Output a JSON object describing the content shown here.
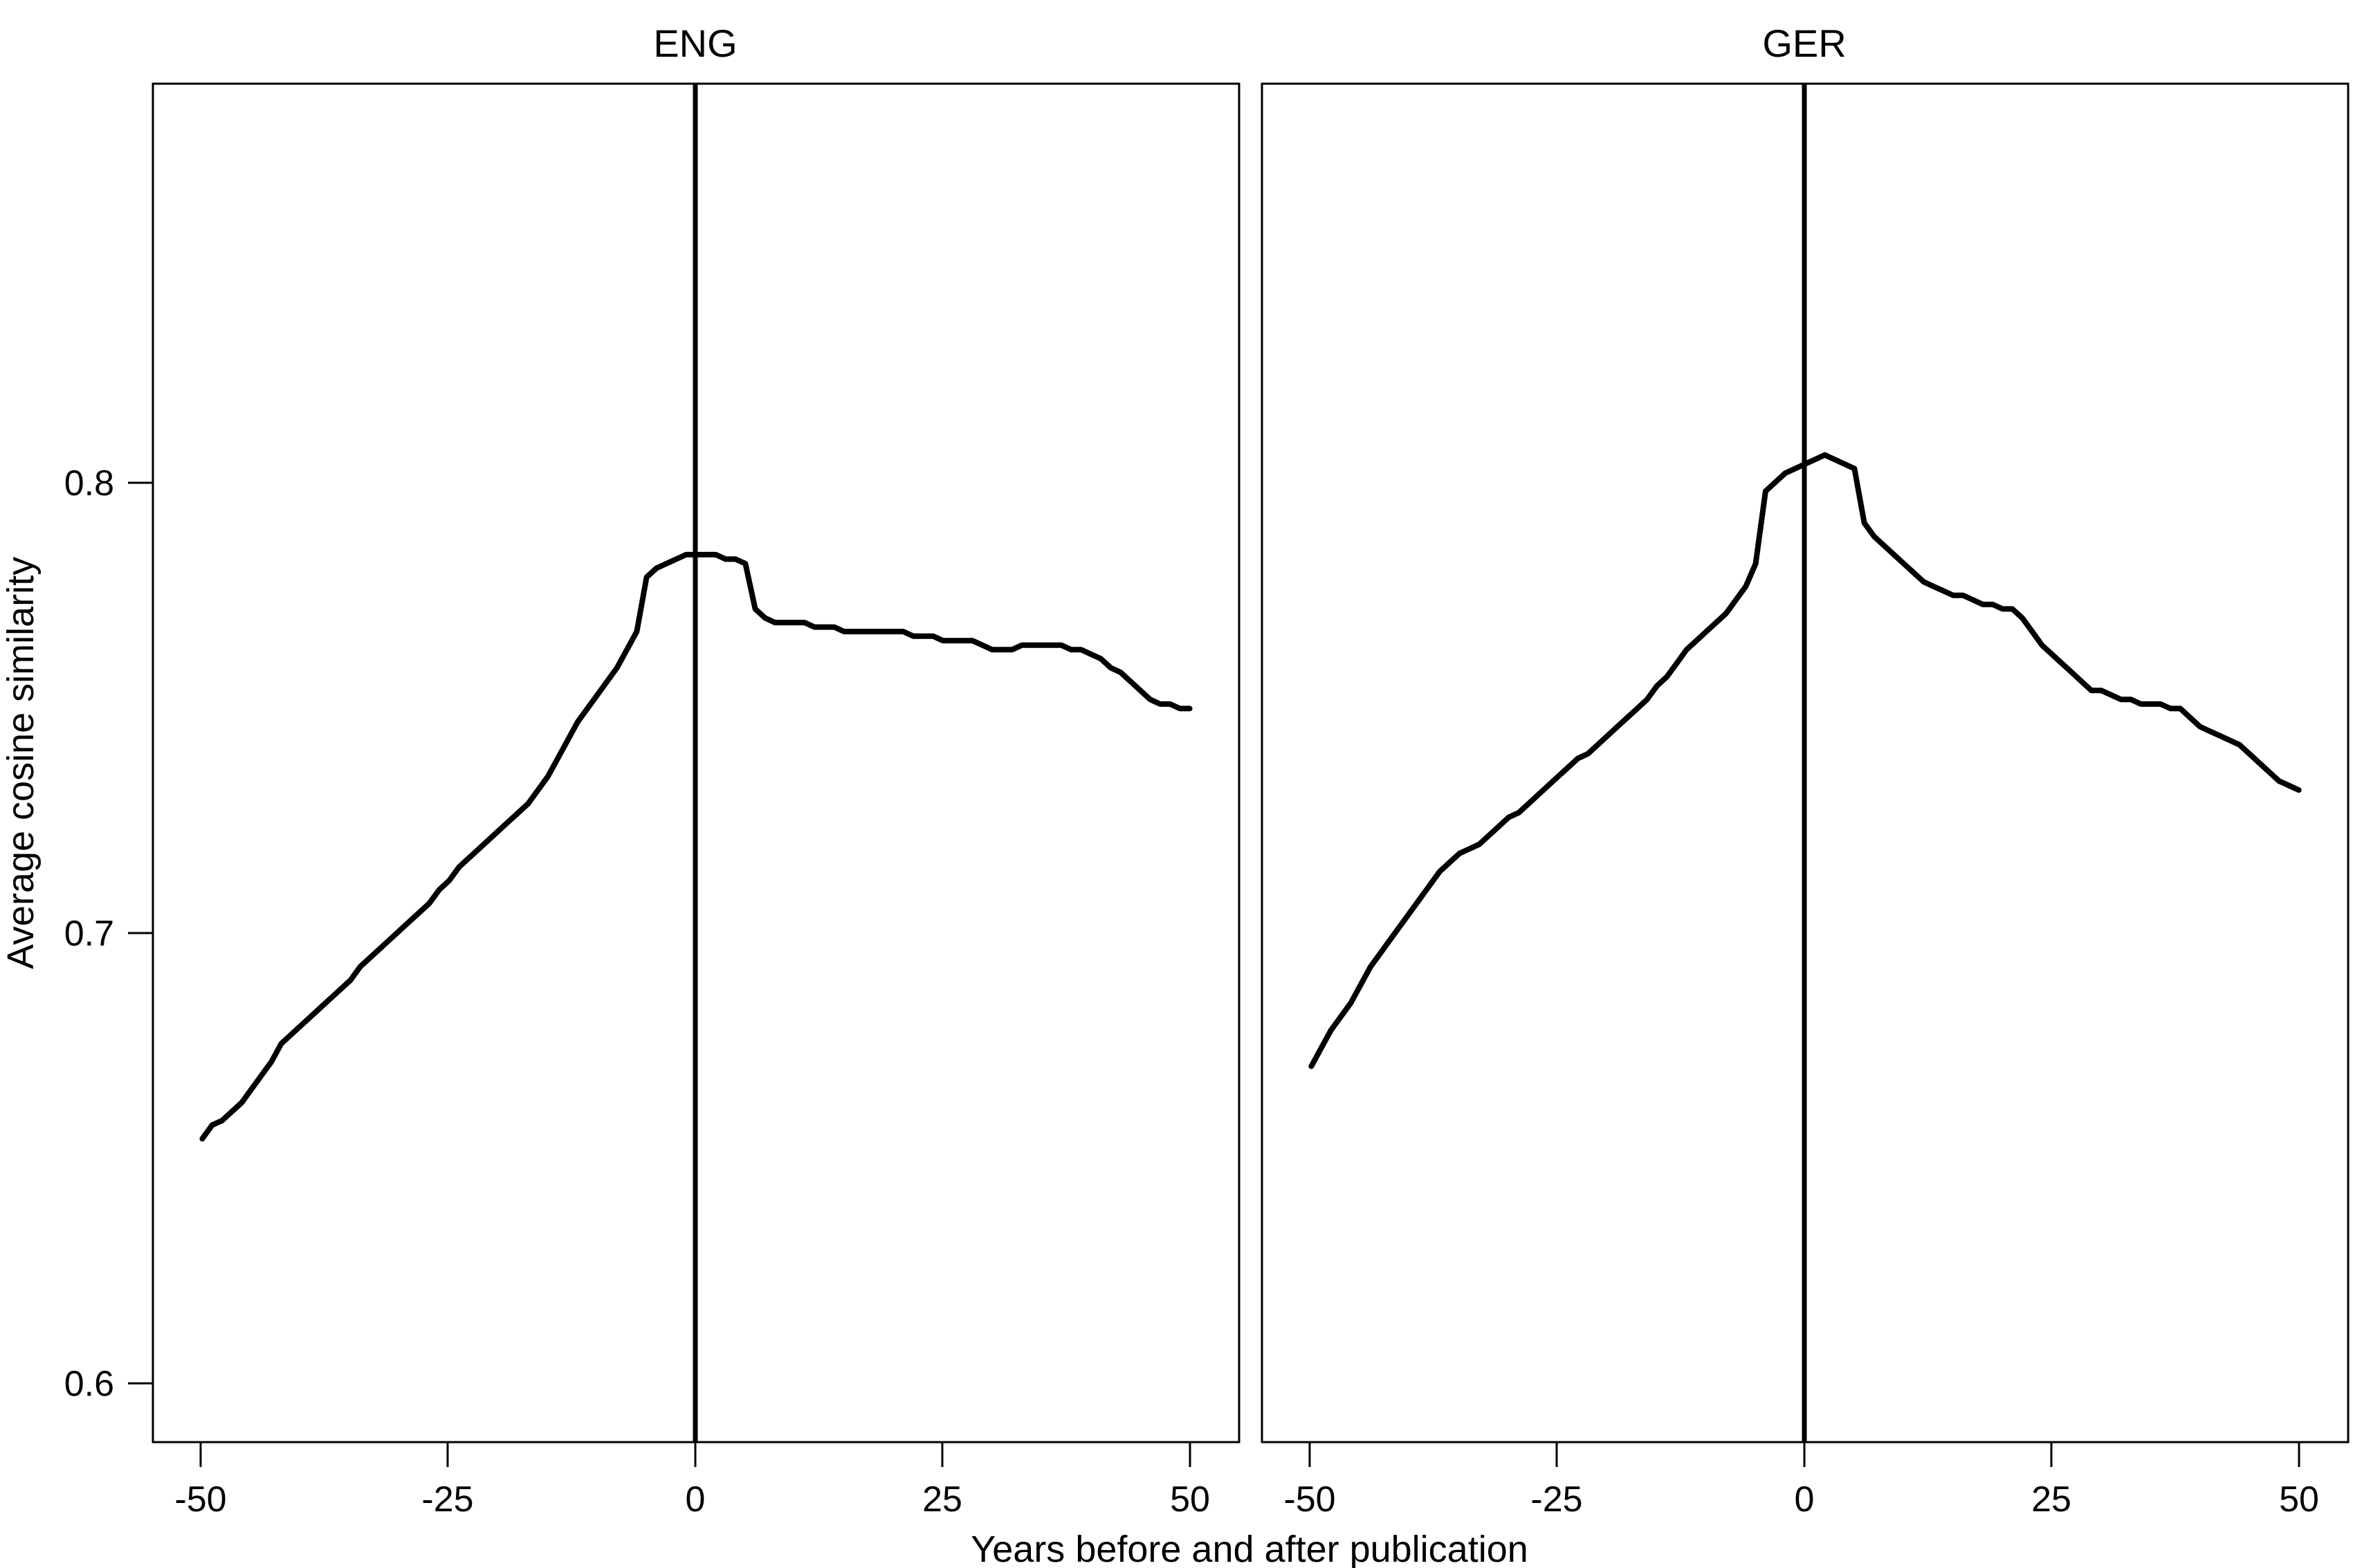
{
  "chart_data": {
    "type": "line",
    "xlabel": "Years before and after publication",
    "ylabel": "Average cosine similarity",
    "xlim": [
      -55,
      55
    ],
    "ylim": [
      0.587,
      0.887
    ],
    "x_ticks": [
      "-50",
      "-25",
      "0",
      "25",
      "50"
    ],
    "y_ticks": [
      "0.6",
      "0.7",
      "0.8"
    ],
    "grid": false,
    "reference_line_x": 0,
    "panels": [
      {
        "title": "ENG",
        "x": [
          -50,
          -49,
          -48,
          -47,
          -46,
          -45,
          -44,
          -43,
          -42,
          -41,
          -40,
          -39,
          -38,
          -37,
          -36,
          -35,
          -34,
          -33,
          -32,
          -31,
          -30,
          -29,
          -28,
          -27,
          -26,
          -25,
          -24,
          -23,
          -22,
          -21,
          -20,
          -19,
          -18,
          -17,
          -16,
          -15,
          -14,
          -13,
          -12,
          -11,
          -10,
          -9,
          -8,
          -7,
          -6,
          -5,
          -4,
          -3,
          -2,
          -1,
          0,
          1,
          2,
          3,
          4,
          5,
          6,
          7,
          8,
          9,
          10,
          11,
          12,
          13,
          14,
          15,
          16,
          17,
          18,
          19,
          20,
          21,
          22,
          23,
          24,
          25,
          26,
          27,
          28,
          29,
          30,
          31,
          32,
          33,
          34,
          35,
          36,
          37,
          38,
          39,
          40,
          41,
          42,
          43,
          44,
          45,
          46,
          47,
          48,
          49,
          50
        ],
        "y": [
          0.654,
          0.657,
          0.658,
          0.66,
          0.662,
          0.665,
          0.668,
          0.671,
          0.675,
          0.677,
          0.679,
          0.681,
          0.683,
          0.685,
          0.687,
          0.689,
          0.692,
          0.694,
          0.696,
          0.698,
          0.7,
          0.702,
          0.704,
          0.706,
          0.709,
          0.711,
          0.714,
          0.716,
          0.718,
          0.72,
          0.722,
          0.724,
          0.726,
          0.728,
          0.731,
          0.734,
          0.738,
          0.742,
          0.746,
          0.749,
          0.752,
          0.755,
          0.758,
          0.762,
          0.766,
          0.778,
          0.78,
          0.781,
          0.782,
          0.783,
          0.783,
          0.783,
          0.783,
          0.782,
          0.782,
          0.781,
          0.771,
          0.769,
          0.768,
          0.768,
          0.768,
          0.768,
          0.767,
          0.767,
          0.767,
          0.766,
          0.766,
          0.766,
          0.766,
          0.766,
          0.766,
          0.766,
          0.765,
          0.765,
          0.765,
          0.764,
          0.764,
          0.764,
          0.764,
          0.763,
          0.762,
          0.762,
          0.762,
          0.763,
          0.763,
          0.763,
          0.763,
          0.763,
          0.762,
          0.762,
          0.761,
          0.76,
          0.758,
          0.757,
          0.755,
          0.753,
          0.751,
          0.75,
          0.75,
          0.749,
          0.749
        ]
      },
      {
        "title": "GER",
        "x": [
          -50,
          -49,
          -48,
          -47,
          -46,
          -45,
          -44,
          -43,
          -42,
          -41,
          -40,
          -39,
          -38,
          -37,
          -36,
          -35,
          -34,
          -33,
          -32,
          -31,
          -30,
          -29,
          -28,
          -27,
          -26,
          -25,
          -24,
          -23,
          -22,
          -21,
          -20,
          -19,
          -18,
          -17,
          -16,
          -15,
          -14,
          -13,
          -12,
          -11,
          -10,
          -9,
          -8,
          -7,
          -6,
          -5,
          -4,
          -3,
          -2,
          -1,
          0,
          1,
          2,
          3,
          4,
          5,
          6,
          7,
          8,
          9,
          10,
          11,
          12,
          13,
          14,
          15,
          16,
          17,
          18,
          19,
          20,
          21,
          22,
          23,
          24,
          25,
          26,
          27,
          28,
          29,
          30,
          31,
          32,
          33,
          34,
          35,
          36,
          37,
          38,
          39,
          40,
          41,
          42,
          43,
          44,
          45,
          46,
          47,
          48,
          49,
          50
        ],
        "y": [
          0.67,
          0.674,
          0.678,
          0.681,
          0.684,
          0.688,
          0.692,
          0.695,
          0.698,
          0.701,
          0.704,
          0.707,
          0.71,
          0.713,
          0.715,
          0.717,
          0.718,
          0.719,
          0.721,
          0.723,
          0.725,
          0.726,
          0.728,
          0.73,
          0.732,
          0.734,
          0.736,
          0.738,
          0.739,
          0.741,
          0.743,
          0.745,
          0.747,
          0.749,
          0.751,
          0.754,
          0.756,
          0.759,
          0.762,
          0.764,
          0.766,
          0.768,
          0.77,
          0.773,
          0.776,
          0.781,
          0.797,
          0.799,
          0.801,
          0.802,
          0.803,
          0.804,
          0.805,
          0.804,
          0.803,
          0.802,
          0.79,
          0.787,
          0.785,
          0.783,
          0.781,
          0.779,
          0.777,
          0.776,
          0.775,
          0.774,
          0.774,
          0.773,
          0.772,
          0.772,
          0.771,
          0.771,
          0.769,
          0.766,
          0.763,
          0.761,
          0.759,
          0.757,
          0.755,
          0.753,
          0.753,
          0.752,
          0.751,
          0.751,
          0.75,
          0.75,
          0.75,
          0.749,
          0.749,
          0.747,
          0.745,
          0.744,
          0.743,
          0.742,
          0.741,
          0.739,
          0.737,
          0.735,
          0.733,
          0.732,
          0.731
        ]
      }
    ]
  }
}
